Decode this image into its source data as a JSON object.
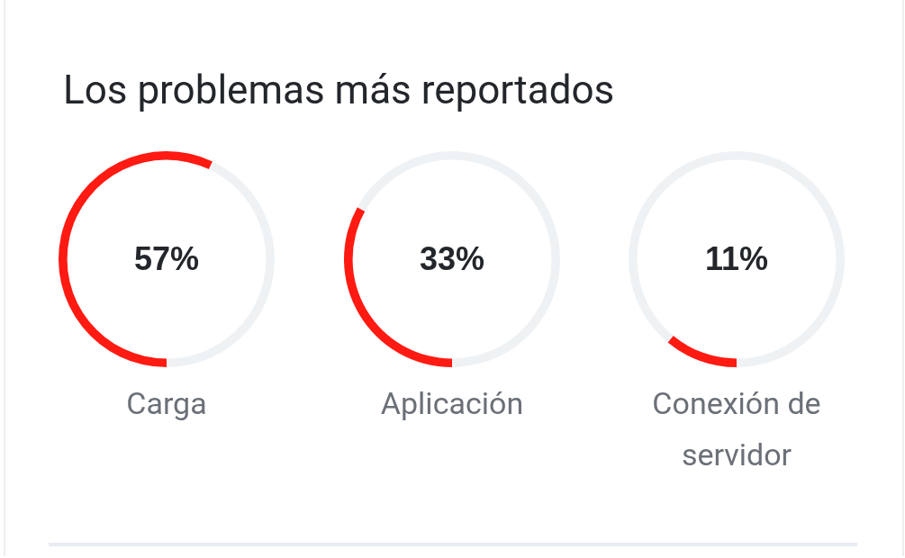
{
  "chart_data": [
    {
      "type": "donut",
      "title": "Los problemas más reportados",
      "categories": [
        "Carga",
        null
      ],
      "values": [
        57,
        43
      ],
      "colors": [
        "#ff1a12",
        "#eff2f4"
      ],
      "annotations": [
        "57%"
      ]
    },
    {
      "type": "donut",
      "categories": [
        "Aplicación",
        null
      ],
      "values": [
        33,
        67
      ],
      "colors": [
        "#ff1a12",
        "#eff2f4"
      ],
      "annotations": [
        "33%"
      ]
    },
    {
      "type": "donut",
      "categories": [
        "Conexión de servidor",
        null
      ],
      "values": [
        11,
        89
      ],
      "colors": [
        "#ff1a12",
        "#eff2f4"
      ],
      "annotations": [
        "11%"
      ]
    }
  ]
}
